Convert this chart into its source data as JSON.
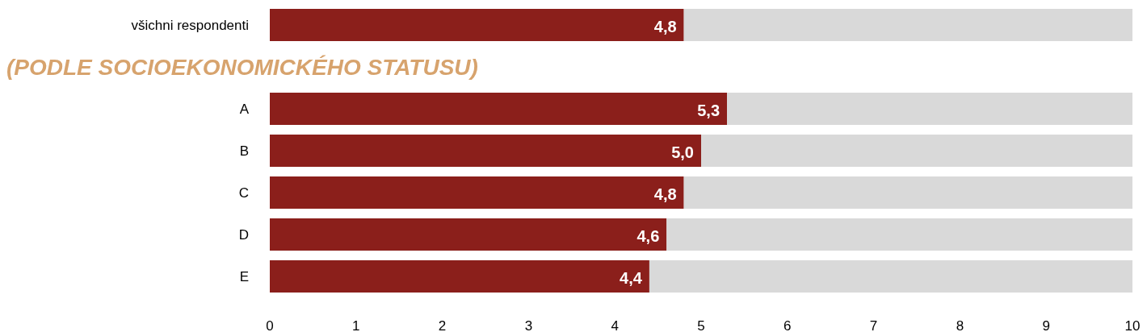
{
  "chart_data": {
    "type": "bar",
    "orientation": "horizontal",
    "stacked": true,
    "categories": [
      "všichni respondenti",
      null,
      "A",
      "B",
      "C",
      "D",
      "E"
    ],
    "series": [
      {
        "color": "#8b1f1b",
        "values": [
          4.8,
          null,
          5.3,
          5.0,
          4.8,
          4.6,
          4.4
        ],
        "value_labels": [
          "4,8",
          null,
          "5,3",
          "5,0",
          "4,8",
          "4,6",
          "4,4"
        ]
      },
      {
        "color": "#d9d9d9",
        "values": [
          5.2,
          null,
          4.7,
          5.0,
          5.2,
          5.4,
          5.6
        ]
      }
    ],
    "annotations": [
      "(PODLE SOCIOEKONOMICKÉHO STATUSU)"
    ],
    "xlim": [
      0,
      10
    ],
    "xticks": [
      0,
      1,
      2,
      3,
      4,
      5,
      6,
      7,
      8,
      9,
      10
    ],
    "grid": false
  }
}
